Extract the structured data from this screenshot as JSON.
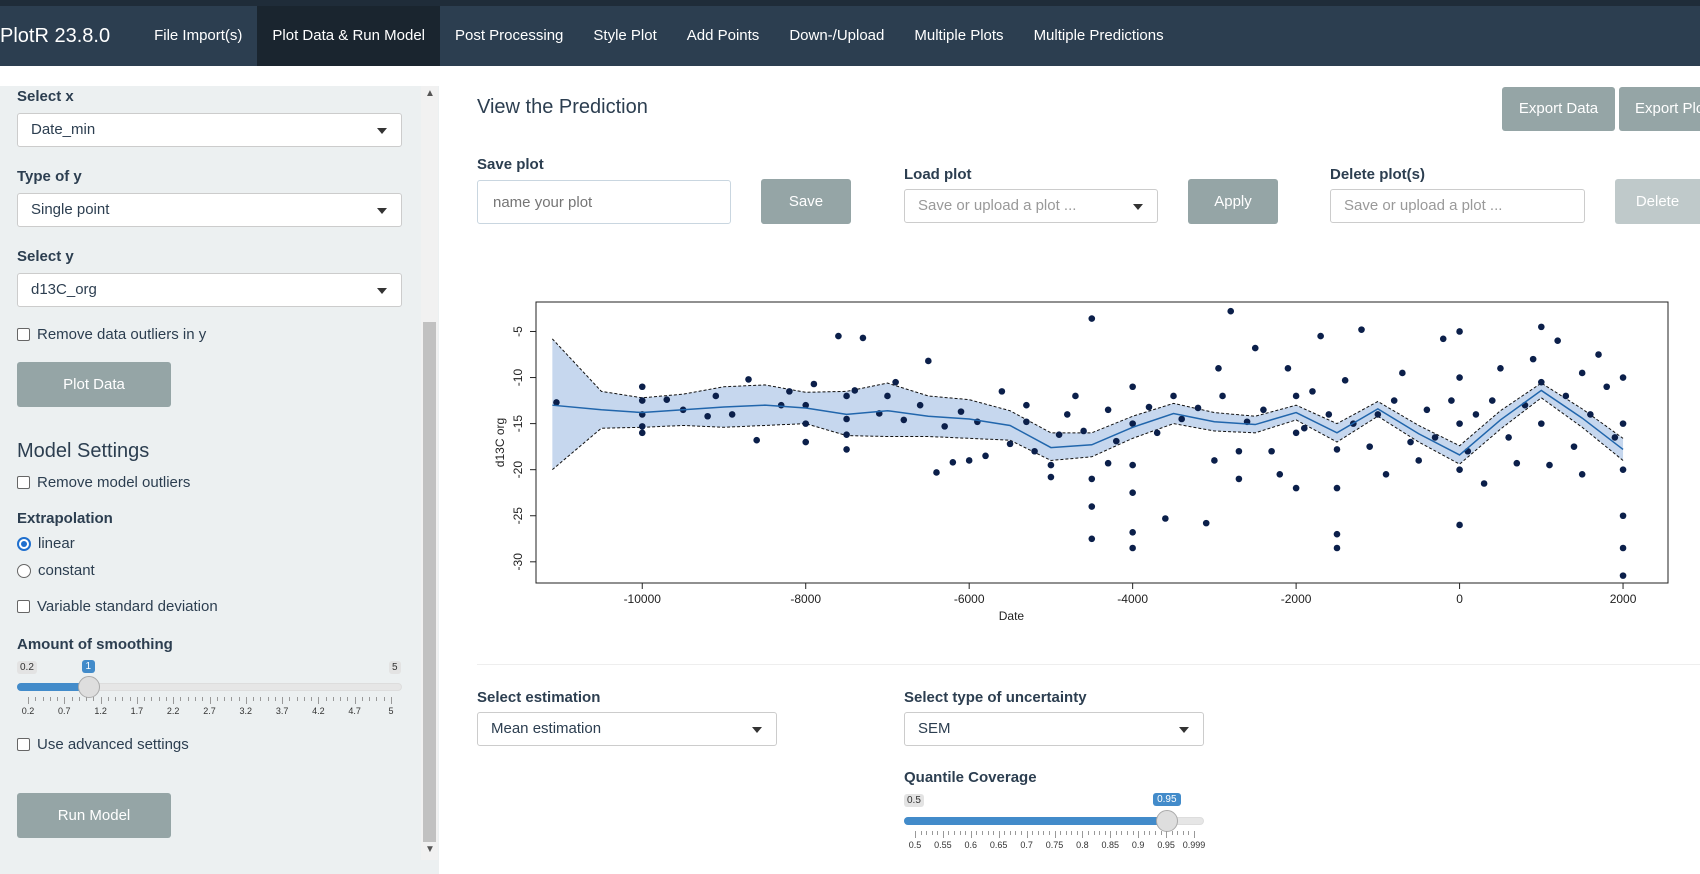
{
  "navbar": {
    "brand": "PlotR 23.8.0",
    "items": [
      {
        "label": "File Import(s)",
        "active": false
      },
      {
        "label": "Plot Data & Run Model",
        "active": true
      },
      {
        "label": "Post Processing",
        "active": false
      },
      {
        "label": "Style Plot",
        "active": false
      },
      {
        "label": "Add Points",
        "active": false
      },
      {
        "label": "Down-/Upload",
        "active": false
      },
      {
        "label": "Multiple Plots",
        "active": false
      },
      {
        "label": "Multiple Predictions",
        "active": false
      }
    ]
  },
  "sidebar": {
    "select_x": {
      "label": "Select x",
      "value": "Date_min"
    },
    "type_y": {
      "label": "Type of y",
      "value": "Single point"
    },
    "select_y": {
      "label": "Select y",
      "value": "d13C_org"
    },
    "remove_outliers_y": {
      "label": "Remove data outliers in y",
      "checked": false
    },
    "plot_data_button": "Plot Data",
    "model_settings_title": "Model Settings",
    "remove_model_outliers": {
      "label": "Remove model outliers",
      "checked": false
    },
    "extrapolation": {
      "label": "Extrapolation",
      "options": [
        {
          "label": "linear",
          "selected": true
        },
        {
          "label": "constant",
          "selected": false
        }
      ]
    },
    "variable_sd": {
      "label": "Variable standard deviation",
      "checked": false
    },
    "smoothing": {
      "label": "Amount of smoothing",
      "min_label": "0.2",
      "max_label": "5",
      "value_label": "1",
      "min": 0.2,
      "max": 5,
      "value": 1,
      "tick_labels": [
        "0.2",
        "0.7",
        "1.2",
        "1.7",
        "2.2",
        "2.7",
        "3.2",
        "3.7",
        "4.2",
        "4.7",
        "5"
      ]
    },
    "advanced_settings": {
      "label": "Use advanced settings",
      "checked": false
    },
    "run_model_button": "Run Model"
  },
  "main": {
    "title": "View the Prediction",
    "export_data_button": "Export Data",
    "export_plot_button": "Export Plo",
    "save_plot": {
      "label": "Save plot",
      "placeholder": "name your plot",
      "button": "Save"
    },
    "load_plot": {
      "label": "Load plot",
      "placeholder": "Save or upload a plot ...",
      "button": "Apply"
    },
    "delete_plot": {
      "label": "Delete plot(s)",
      "placeholder": "Save or upload a plot ...",
      "button": "Delete"
    },
    "select_estimation": {
      "label": "Select estimation",
      "value": "Mean estimation"
    },
    "select_uncertainty": {
      "label": "Select type of uncertainty",
      "value": "SEM"
    },
    "quantile": {
      "label": "Quantile Coverage",
      "min_label": "0.5",
      "value_label": "0.95",
      "min": 0.5,
      "max": 0.999,
      "value": 0.95,
      "tick_labels": [
        "0.5",
        "0.55",
        "0.6",
        "0.65",
        "0.7",
        "0.75",
        "0.8",
        "0.85",
        "0.9",
        "0.95",
        "0.999"
      ]
    }
  },
  "chart_data": {
    "type": "scatter",
    "xlabel": "Date",
    "ylabel": "d13C org",
    "xlim": [
      -11300,
      2550
    ],
    "ylim": [
      -32.3,
      -1.8
    ],
    "xticks": [
      -10000,
      -8000,
      -6000,
      -4000,
      -2000,
      0,
      2000
    ],
    "yticks": [
      -5,
      -10,
      -15,
      -20,
      -25,
      -30
    ],
    "point_color": "#0b1f4a",
    "line_color": "#2166ac",
    "band_color": "#c6d7ee",
    "mean_line": {
      "x": [
        -11100,
        -10500,
        -10000,
        -9500,
        -9000,
        -8500,
        -8000,
        -7500,
        -7000,
        -6500,
        -6000,
        -5500,
        -5000,
        -4500,
        -4000,
        -3500,
        -3000,
        -2500,
        -2000,
        -1500,
        -1000,
        -500,
        0,
        500,
        1000,
        1500,
        2000
      ],
      "y": [
        -13.0,
        -13.5,
        -13.8,
        -13.5,
        -13.2,
        -13.0,
        -13.3,
        -14.0,
        -13.6,
        -14.2,
        -14.5,
        -15.2,
        -17.6,
        -17.3,
        -15.4,
        -13.9,
        -14.8,
        -15.1,
        -13.8,
        -16.0,
        -13.4,
        -16.1,
        -18.4,
        -14.6,
        -11.4,
        -14.4,
        -17.8
      ]
    },
    "band_upper": [
      -5.8,
      -11.5,
      -12.2,
      -11.8,
      -11.0,
      -10.8,
      -11.6,
      -11.5,
      -10.6,
      -12.0,
      -12.4,
      -13.6,
      -16.0,
      -16.0,
      -14.2,
      -12.8,
      -13.8,
      -14.2,
      -13.0,
      -15.0,
      -12.6,
      -15.2,
      -17.4,
      -13.6,
      -10.6,
      -13.4,
      -16.6
    ],
    "band_lower": [
      -20.0,
      -15.5,
      -15.4,
      -15.2,
      -15.4,
      -15.2,
      -15.0,
      -16.3,
      -16.4,
      -16.4,
      -16.6,
      -16.8,
      -19.0,
      -18.6,
      -16.6,
      -15.0,
      -15.8,
      -16.0,
      -14.6,
      -17.0,
      -14.2,
      -17.0,
      -19.4,
      -15.6,
      -12.2,
      -15.4,
      -19.0
    ],
    "points": [
      [
        -11050,
        -12.7
      ],
      [
        -10000,
        -11.0
      ],
      [
        -10000,
        -12.5
      ],
      [
        -10000,
        -14.0
      ],
      [
        -10000,
        -15.3
      ],
      [
        -10000,
        -16.0
      ],
      [
        -9700,
        -12.4
      ],
      [
        -9500,
        -13.5
      ],
      [
        -9200,
        -14.2
      ],
      [
        -9100,
        -12.0
      ],
      [
        -8900,
        -14.0
      ],
      [
        -8700,
        -10.2
      ],
      [
        -8600,
        -16.8
      ],
      [
        -8300,
        -13.0
      ],
      [
        -8200,
        -11.5
      ],
      [
        -8000,
        -13.0
      ],
      [
        -8000,
        -15.0
      ],
      [
        -8000,
        -17.0
      ],
      [
        -7900,
        -10.7
      ],
      [
        -7600,
        -5.5
      ],
      [
        -7500,
        -12.0
      ],
      [
        -7500,
        -14.5
      ],
      [
        -7500,
        -16.2
      ],
      [
        -7500,
        -17.8
      ],
      [
        -7400,
        -11.4
      ],
      [
        -7300,
        -5.7
      ],
      [
        -7100,
        -13.9
      ],
      [
        -7000,
        -12.0
      ],
      [
        -6900,
        -10.5
      ],
      [
        -6800,
        -14.6
      ],
      [
        -6600,
        -13.0
      ],
      [
        -6500,
        -8.2
      ],
      [
        -6400,
        -20.3
      ],
      [
        -6300,
        -15.3
      ],
      [
        -6200,
        -19.2
      ],
      [
        -6100,
        -13.7
      ],
      [
        -6000,
        -19.0
      ],
      [
        -5900,
        -14.8
      ],
      [
        -5800,
        -18.5
      ],
      [
        -5600,
        -11.5
      ],
      [
        -5500,
        -17.2
      ],
      [
        -5300,
        -13.0
      ],
      [
        -5300,
        -14.8
      ],
      [
        -5200,
        -18.0
      ],
      [
        -5000,
        -19.5
      ],
      [
        -5000,
        -20.8
      ],
      [
        -4900,
        -16.2
      ],
      [
        -4800,
        -14.0
      ],
      [
        -4700,
        -12.0
      ],
      [
        -4600,
        -15.8
      ],
      [
        -4500,
        -3.6
      ],
      [
        -4500,
        -21.0
      ],
      [
        -4500,
        -24.0
      ],
      [
        -4500,
        -27.5
      ],
      [
        -4300,
        -13.5
      ],
      [
        -4300,
        -19.3
      ],
      [
        -4200,
        -16.9
      ],
      [
        -4000,
        -11.0
      ],
      [
        -4000,
        -15.0
      ],
      [
        -4000,
        -19.5
      ],
      [
        -4000,
        -22.5
      ],
      [
        -4000,
        -26.8
      ],
      [
        -4000,
        -28.5
      ],
      [
        -3800,
        -13.2
      ],
      [
        -3700,
        -16.0
      ],
      [
        -3600,
        -25.3
      ],
      [
        -3500,
        -12.0
      ],
      [
        -3400,
        -14.5
      ],
      [
        -3200,
        -13.3
      ],
      [
        -3100,
        -25.8
      ],
      [
        -3000,
        -19.0
      ],
      [
        -2950,
        -9.0
      ],
      [
        -2900,
        -12.0
      ],
      [
        -2800,
        -2.8
      ],
      [
        -2700,
        -18.0
      ],
      [
        -2700,
        -21.0
      ],
      [
        -2600,
        -14.8
      ],
      [
        -2500,
        -6.8
      ],
      [
        -2400,
        -13.5
      ],
      [
        -2300,
        -18.0
      ],
      [
        -2200,
        -20.5
      ],
      [
        -2100,
        -9.0
      ],
      [
        -2000,
        -12.0
      ],
      [
        -2000,
        -16.0
      ],
      [
        -2000,
        -22.0
      ],
      [
        -1900,
        -15.5
      ],
      [
        -1800,
        -11.5
      ],
      [
        -1700,
        -5.5
      ],
      [
        -1600,
        -14.0
      ],
      [
        -1500,
        -17.8
      ],
      [
        -1500,
        -22.0
      ],
      [
        -1500,
        -27.0
      ],
      [
        -1500,
        -28.5
      ],
      [
        -1400,
        -10.3
      ],
      [
        -1300,
        -15.0
      ],
      [
        -1200,
        -4.8
      ],
      [
        -1100,
        -17.5
      ],
      [
        -1000,
        -14.0
      ],
      [
        -900,
        -20.5
      ],
      [
        -800,
        -12.5
      ],
      [
        -700,
        -9.5
      ],
      [
        -600,
        -17.0
      ],
      [
        -500,
        -19.0
      ],
      [
        -400,
        -13.5
      ],
      [
        -300,
        -16.5
      ],
      [
        -200,
        -5.8
      ],
      [
        -100,
        -12.5
      ],
      [
        0,
        -5.0
      ],
      [
        0,
        -10.0
      ],
      [
        0,
        -15.0
      ],
      [
        0,
        -20.0
      ],
      [
        0,
        -26.0
      ],
      [
        100,
        -18.0
      ],
      [
        200,
        -14.0
      ],
      [
        300,
        -21.5
      ],
      [
        400,
        -12.5
      ],
      [
        500,
        -9.0
      ],
      [
        600,
        -16.5
      ],
      [
        700,
        -19.3
      ],
      [
        800,
        -13.0
      ],
      [
        900,
        -8.0
      ],
      [
        1000,
        -4.5
      ],
      [
        1000,
        -10.5
      ],
      [
        1000,
        -15.0
      ],
      [
        1100,
        -19.5
      ],
      [
        1200,
        -6.0
      ],
      [
        1300,
        -12.0
      ],
      [
        1400,
        -17.5
      ],
      [
        1500,
        -9.5
      ],
      [
        1500,
        -20.5
      ],
      [
        1600,
        -14.0
      ],
      [
        1700,
        -7.5
      ],
      [
        1800,
        -11.0
      ],
      [
        1900,
        -16.5
      ],
      [
        2000,
        -10.0
      ],
      [
        2000,
        -15.0
      ],
      [
        2000,
        -20.0
      ],
      [
        2000,
        -25.0
      ],
      [
        2000,
        -28.5
      ],
      [
        2000,
        -31.5
      ]
    ]
  }
}
